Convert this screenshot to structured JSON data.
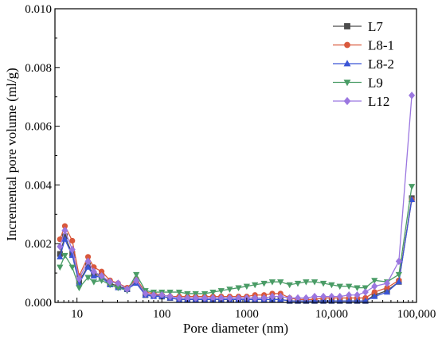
{
  "chart_data": {
    "type": "line",
    "xscale": "log",
    "xlabel": "Pore diameter (nm)",
    "ylabel": "Incremental pore volume (ml/g)",
    "xlim": [
      5.5,
      100000
    ],
    "ylim": [
      0,
      0.01
    ],
    "x_ticks": [
      {
        "value": 10,
        "label": "10"
      },
      {
        "value": 100,
        "label": "100"
      },
      {
        "value": 1000,
        "label": "1000"
      },
      {
        "value": 10000,
        "label": "10,000"
      },
      {
        "value": 100000,
        "label": "100,000"
      }
    ],
    "y_ticks": [
      {
        "value": 0,
        "label": "0.000"
      },
      {
        "value": 0.002,
        "label": "0.002"
      },
      {
        "value": 0.004,
        "label": "0.004"
      },
      {
        "value": 0.006,
        "label": "0.006"
      },
      {
        "value": 0.008,
        "label": "0.008"
      },
      {
        "value": 0.01,
        "label": "0.010"
      }
    ],
    "legend_position": "top-right",
    "grid": false,
    "x": [
      6.3,
      7.2,
      8.8,
      10.6,
      13.5,
      15.8,
      19.5,
      24.5,
      30.5,
      39,
      50,
      64,
      80,
      100,
      125,
      160,
      200,
      250,
      320,
      400,
      500,
      630,
      800,
      1000,
      1250,
      1600,
      2000,
      2500,
      3200,
      4000,
      5000,
      6300,
      8000,
      10000,
      12500,
      16000,
      20000,
      25000,
      32000,
      45000,
      62000,
      88000
    ],
    "series": [
      {
        "name": "L7",
        "color": "#4d4d4d",
        "marker": "square",
        "values": [
          0.00165,
          0.00225,
          0.00165,
          0.0007,
          0.00125,
          0.00095,
          0.0009,
          0.00065,
          0.00055,
          0.00045,
          0.0007,
          0.00025,
          0.00025,
          0.0002,
          0.00015,
          0.0001,
          0.0001,
          0.0001,
          0.0001,
          0.0001,
          0.0001,
          0.0001,
          0.0001,
          0.0001,
          0.0001,
          0.0001,
          0.0001,
          0.0001,
          5e-05,
          5e-05,
          5e-05,
          5e-05,
          5e-05,
          5e-05,
          5e-05,
          5e-05,
          5e-05,
          5e-05,
          0.00025,
          0.0004,
          0.0007,
          0.00355
        ]
      },
      {
        "name": "L8-1",
        "color": "#d9583c",
        "marker": "circle",
        "values": [
          0.00215,
          0.0026,
          0.0021,
          0.0009,
          0.00155,
          0.0012,
          0.00105,
          0.00075,
          0.00065,
          0.0005,
          0.0008,
          0.00035,
          0.0003,
          0.00025,
          0.0002,
          0.0002,
          0.0002,
          0.0002,
          0.0002,
          0.0002,
          0.0002,
          0.0002,
          0.0002,
          0.0002,
          0.00025,
          0.00025,
          0.0003,
          0.0003,
          0.00015,
          0.0001,
          0.0001,
          0.0001,
          0.00015,
          0.00015,
          0.00015,
          0.00015,
          0.00015,
          0.00015,
          0.00035,
          0.0005,
          0.00075,
          0.0035
        ]
      },
      {
        "name": "L8-2",
        "color": "#3a55d6",
        "marker": "triangle-up",
        "values": [
          0.00155,
          0.00215,
          0.0016,
          0.00065,
          0.0012,
          0.0009,
          0.00085,
          0.0006,
          0.0005,
          0.00045,
          0.00065,
          0.00025,
          0.0002,
          0.0002,
          0.00015,
          0.0001,
          0.0001,
          0.0001,
          0.0001,
          0.0001,
          0.0001,
          0.0001,
          0.0001,
          0.0001,
          0.0001,
          0.0001,
          0.0001,
          0.0001,
          5e-05,
          5e-05,
          5e-05,
          5e-05,
          5e-05,
          5e-05,
          5e-05,
          5e-05,
          5e-05,
          5e-05,
          0.0002,
          0.00035,
          0.0007,
          0.0035
        ]
      },
      {
        "name": "L9",
        "color": "#4a9c66",
        "marker": "triangle-down",
        "values": [
          0.0012,
          0.0016,
          0.0012,
          0.0005,
          0.00085,
          0.0007,
          0.00075,
          0.0006,
          0.0005,
          0.0004,
          0.00095,
          0.0004,
          0.00035,
          0.00035,
          0.00035,
          0.00035,
          0.0003,
          0.0003,
          0.0003,
          0.00035,
          0.0004,
          0.00045,
          0.0005,
          0.00055,
          0.0006,
          0.00065,
          0.0007,
          0.0007,
          0.0006,
          0.00065,
          0.0007,
          0.0007,
          0.00065,
          0.0006,
          0.00055,
          0.00055,
          0.0005,
          0.0005,
          0.00075,
          0.0007,
          0.00095,
          0.00395
        ]
      },
      {
        "name": "L12",
        "color": "#9b77e0",
        "marker": "diamond",
        "values": [
          0.0019,
          0.00245,
          0.0018,
          0.0008,
          0.0014,
          0.00105,
          0.0009,
          0.0007,
          0.00065,
          0.00045,
          0.00075,
          0.0003,
          0.00025,
          0.00025,
          0.0002,
          0.00015,
          0.00015,
          0.00015,
          0.00015,
          0.00015,
          0.00015,
          0.00015,
          0.00015,
          0.00015,
          0.00015,
          0.00015,
          0.0002,
          0.0002,
          0.00015,
          0.00015,
          0.00015,
          0.0002,
          0.0002,
          0.0002,
          0.0002,
          0.00025,
          0.00025,
          0.00035,
          0.00055,
          0.00065,
          0.0014,
          0.00705
        ]
      }
    ]
  }
}
